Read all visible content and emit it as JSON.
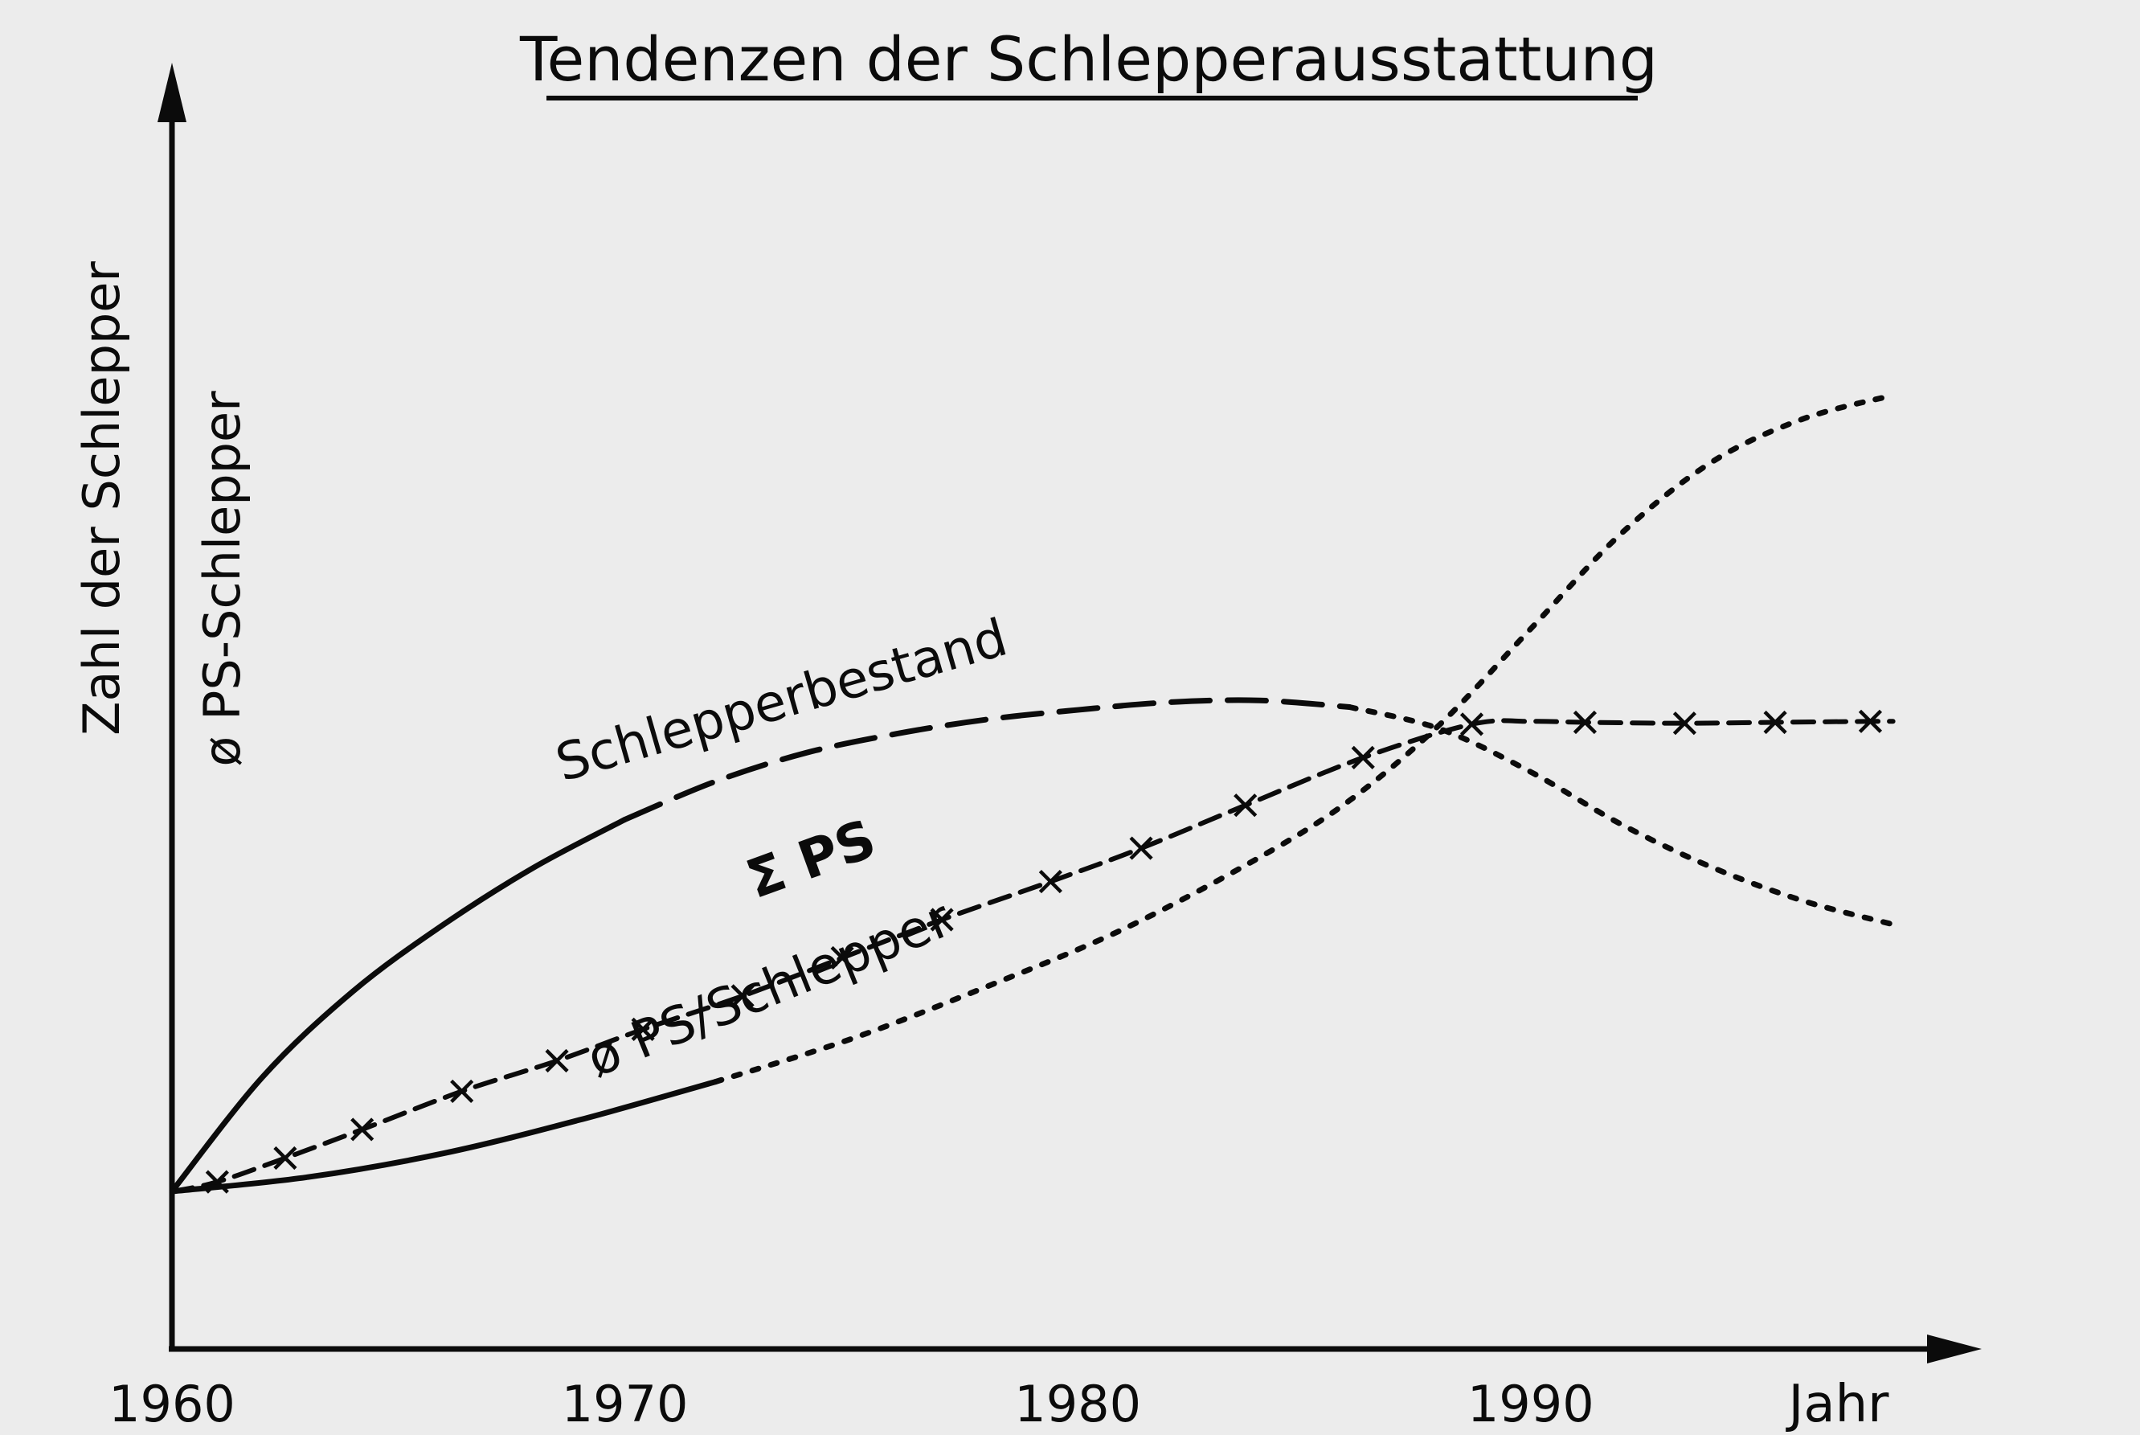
{
  "chart_data": {
    "type": "line",
    "title": "Tendenzen der Schlepperausstattung",
    "ylabels": [
      "Zahl der Schlepper",
      "ø PS-Schlepper"
    ],
    "xlabel": "Jahr",
    "x_ticks": [
      "1960",
      "1970",
      "1980",
      "1990"
    ],
    "xlim": [
      1960,
      1999
    ],
    "ylim": [
      0,
      100
    ],
    "grid": false,
    "legend": "none",
    "series": [
      {
        "name": "Schlepperbestand",
        "style": "solid-then-dashed-then-dotted",
        "x": [
          1960,
          1962,
          1964,
          1966,
          1968,
          1970,
          1972,
          1974,
          1976,
          1978,
          1980,
          1982,
          1984,
          1986,
          1988,
          1990,
          1992,
          1994,
          1996,
          1998
        ],
        "y": [
          0,
          12,
          21,
          28,
          34,
          39,
          43,
          46,
          48,
          49.5,
          50.5,
          51.3,
          51.5,
          50.8,
          48.5,
          44,
          38.5,
          34,
          30.5,
          28
        ]
      },
      {
        "name": "Σ PS",
        "style": "dashed-with-x-markers",
        "x": [
          1960,
          1961,
          1962.5,
          1964.2,
          1966.4,
          1968.5,
          1970.4,
          1972.6,
          1974.8,
          1977,
          1979.4,
          1981.4,
          1983.7,
          1986.3,
          1988.7,
          1990,
          1991.2,
          1993.4,
          1995.4,
          1997.5,
          1998
        ],
        "y": [
          0,
          1,
          3.5,
          6.5,
          10.5,
          13.7,
          17,
          20.5,
          24.5,
          28.5,
          32.5,
          36,
          40.5,
          45.5,
          49,
          49.3,
          49.2,
          49.1,
          49.2,
          49.3,
          49.3
        ]
      },
      {
        "name": "ø PS/Schlepper",
        "style": "solid-then-dotted",
        "x": [
          1960,
          1963,
          1966,
          1969,
          1972,
          1975,
          1978,
          1981,
          1984,
          1986,
          1988,
          1990,
          1992,
          1994,
          1996,
          1998
        ],
        "y": [
          0,
          1.5,
          4,
          7.5,
          11.5,
          16,
          21.5,
          27.5,
          35,
          41,
          49,
          59,
          69,
          76.5,
          81,
          83.5
        ]
      }
    ],
    "annotations": [
      {
        "text": "Schlepperbestand",
        "series": "Schlepperbestand"
      },
      {
        "text": "Σ PS",
        "series": "Σ PS"
      },
      {
        "text": "ø PS/Schlepper",
        "series": "ø PS/Schlepper"
      }
    ]
  }
}
